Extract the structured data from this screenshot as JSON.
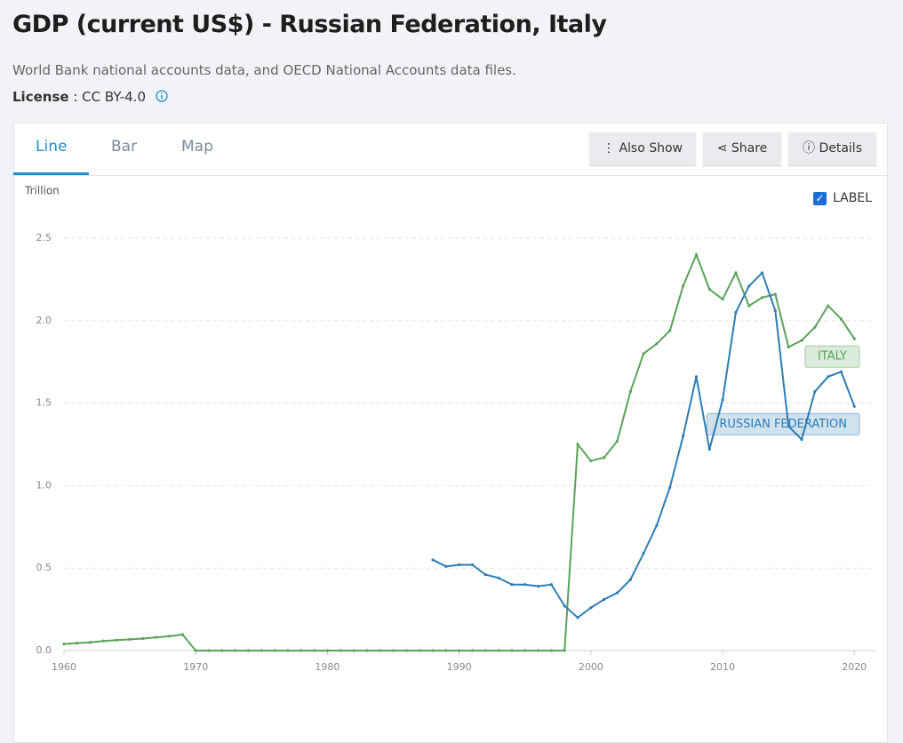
{
  "header": {
    "title": "GDP (current US$) - Russian Federation, Italy",
    "source": "World Bank national accounts data, and OECD National Accounts data files.",
    "license_label": "License",
    "license_value": ": CC BY-4.0"
  },
  "tabs": [
    "Line",
    "Bar",
    "Map"
  ],
  "buttons": [
    "Also Show",
    "Share",
    "Details"
  ],
  "label_toggle": "LABEL",
  "chart_data": {
    "type": "line",
    "y_unit": "Trillion",
    "x": [
      1960,
      1961,
      1962,
      1963,
      1964,
      1965,
      1966,
      1967,
      1968,
      1969,
      1970,
      1971,
      1972,
      1973,
      1974,
      1975,
      1976,
      1977,
      1978,
      1979,
      1980,
      1981,
      1982,
      1983,
      1984,
      1985,
      1986,
      1987,
      1988,
      1989,
      1990,
      1991,
      1992,
      1993,
      1994,
      1995,
      1996,
      1997,
      1998,
      1999,
      2000,
      2001,
      2002,
      2003,
      2004,
      2005,
      2006,
      2007,
      2008,
      2009,
      2010,
      2011,
      2012,
      2013,
      2014,
      2015,
      2016,
      2017,
      2018,
      2019,
      2020
    ],
    "series": [
      {
        "name": "ITALY",
        "color": "#5aa35a",
        "values": [
          0.04,
          0.045,
          0.05,
          0.058,
          0.063,
          0.068,
          0.073,
          0.08,
          0.087,
          0.097,
          0,
          0,
          0,
          0,
          0,
          0,
          0,
          0,
          0,
          0,
          0,
          0,
          0,
          0,
          0,
          0,
          0,
          0,
          0,
          0,
          0,
          0,
          0,
          0,
          0,
          0,
          0,
          0,
          0,
          1.25,
          1.15,
          1.17,
          1.27,
          1.57,
          1.8,
          1.86,
          1.94,
          2.21,
          2.4,
          2.19,
          2.13,
          2.29,
          2.09,
          2.14,
          2.16,
          1.84,
          1.88,
          1.96,
          2.09,
          2.01,
          1.89
        ]
      },
      {
        "name": "RUSSIAN FEDERATION",
        "color": "#2e7db5",
        "values": [
          null,
          null,
          null,
          null,
          null,
          null,
          null,
          null,
          null,
          null,
          null,
          null,
          null,
          null,
          null,
          null,
          null,
          null,
          null,
          null,
          null,
          null,
          null,
          null,
          null,
          null,
          null,
          null,
          0.55,
          0.51,
          0.52,
          0.52,
          0.46,
          0.44,
          0.4,
          0.4,
          0.39,
          0.4,
          0.27,
          0.2,
          0.26,
          0.31,
          0.35,
          0.43,
          0.59,
          0.76,
          0.99,
          1.3,
          1.66,
          1.22,
          1.52,
          2.05,
          2.21,
          2.29,
          2.06,
          1.36,
          1.28,
          1.57,
          1.66,
          1.69,
          1.48
        ]
      }
    ],
    "xlim": [
      1960,
      2021.6
    ],
    "xticks": [
      1960,
      1970,
      1980,
      1990,
      2000,
      2010,
      2020
    ],
    "ylim": [
      0,
      2.5
    ],
    "yticks": [
      {
        "value": 0,
        "label": "0.0"
      },
      0.5,
      {
        "value": 1,
        "label": "1.0"
      },
      1.5,
      {
        "value": 2,
        "label": "2.0"
      },
      2.5
    ],
    "grid": true
  }
}
